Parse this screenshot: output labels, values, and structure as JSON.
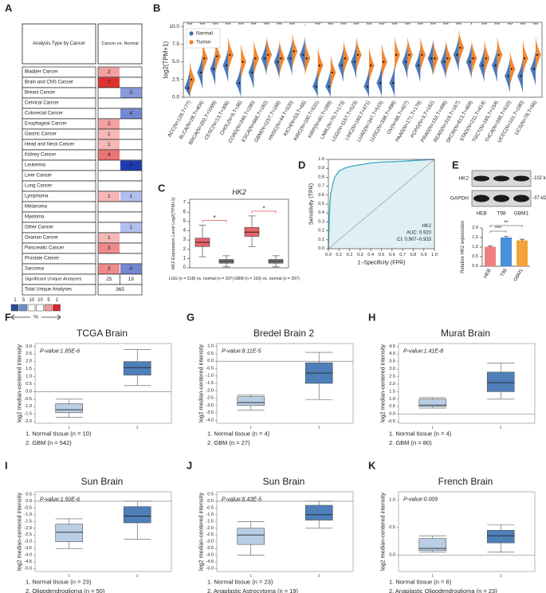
{
  "panel_a": {
    "label": "A",
    "header_left": "Analysis Type by Cancer",
    "header_right": "Cancer vs. Normal",
    "rows": [
      {
        "name": "Bladder Cancer",
        "up": 2,
        "down": null
      },
      {
        "name": "Brain and CNS Cancer",
        "up": 7,
        "down": null
      },
      {
        "name": "Breast Cancer",
        "up": null,
        "down": 3
      },
      {
        "name": "Cervical Cancer",
        "up": null,
        "down": null
      },
      {
        "name": "Colorectal Cancer",
        "up": null,
        "down": 4
      },
      {
        "name": "Esophageal Cancer",
        "up": 2,
        "down": null
      },
      {
        "name": "Gastric Cancer",
        "up": 1,
        "down": null
      },
      {
        "name": "Head and Neck Cancer",
        "up": 1,
        "down": null
      },
      {
        "name": "Kidney Cancer",
        "up": 4,
        "down": null
      },
      {
        "name": "Leukemia",
        "up": null,
        "down": 8
      },
      {
        "name": "Liver Cancer",
        "up": null,
        "down": null
      },
      {
        "name": "Lung Cancer",
        "up": null,
        "down": null
      },
      {
        "name": "Lymphoma",
        "up": 1,
        "down": 1
      },
      {
        "name": "Melanoma",
        "up": null,
        "down": null
      },
      {
        "name": "Myeloma",
        "up": null,
        "down": null
      },
      {
        "name": "Other Cancer",
        "up": null,
        "down": 1
      },
      {
        "name": "Ovarian Cancer",
        "up": 1,
        "down": null
      },
      {
        "name": "Pancreatic Cancer",
        "up": 3,
        "down": null
      },
      {
        "name": "Prostate Cancer",
        "up": null,
        "down": null
      },
      {
        "name": "Sarcoma",
        "up": 3,
        "down": 4
      }
    ],
    "significant_label": "Significant Unique Analyses",
    "significant": [
      25,
      19
    ],
    "total_label": "Total Unique Analyses",
    "total": 365,
    "legend_ticks": [
      1,
      5,
      10,
      10,
      5,
      1
    ],
    "legend_unit": "%"
  },
  "panel_b": {
    "label": "B",
    "type": "violin",
    "ylabel": "log2(TPM+1)",
    "ylim": [
      0,
      10.6
    ],
    "yticks": [
      {
        "value": 0,
        "label": "0.0"
      },
      2.5,
      {
        "value": 5,
        "label": "5.0"
      },
      7.5,
      {
        "value": 10,
        "label": "10.0"
      }
    ],
    "categories": [
      "ACC(N=128,T=77)",
      "BLCA(N=28,T=404)",
      "BRCA(N=292,T=1099)",
      "CESC(N=13,T=306)",
      "CHOL(N=9,T=36)",
      "COAD(N=349,T=290)",
      "ESCA(N=666,T=182)",
      "GBM(N=1157,T=166)",
      "HNSC(N=44,T=520)",
      "KICH(N=53,T=66)",
      "KIRC(N=100,T=531)",
      "KIRP(N=60,T=289)",
      "LAML(N=70,T=173)",
      "LGG(N=1157,T=523)",
      "LIHC(N=160,T=371)",
      "LUAD(N=347,T=515)",
      "LUSC(N=338,T=498)",
      "OV(N=88,T=427)",
      "PAAD(N=171,T=179)",
      "PCPG(N=3,T=182)",
      "PRAD(N=152,T=496)",
      "READ(N=318,T=167)",
      "SKCM(N=813,T=469)",
      "STAD(N=211,T=414)",
      "TGCT(N=165,T=154)",
      "THCA(N=338,T=510)",
      "UCEC(N=101,T=180)",
      "UCS(N=78,T=56)"
    ],
    "significance": [
      "***",
      "***",
      "***",
      "***",
      "***",
      "***",
      "***",
      "***",
      "***",
      "-",
      "***",
      "***",
      "***",
      "***",
      "***",
      "***",
      "***",
      "***",
      "***",
      "***",
      "***",
      "***",
      "*",
      "***",
      "***",
      "***",
      "***",
      "***"
    ],
    "series": [
      {
        "name": "Normal",
        "color": "#3a6db4",
        "values": [
          1.3,
          3.5,
          4.0,
          4.5,
          2.0,
          3.5,
          5.5,
          5.0,
          5.5,
          6.0,
          1.5,
          1.5,
          4.5,
          5.0,
          1.5,
          2.0,
          2.0,
          5.0,
          4.5,
          5.5,
          5.0,
          6.0,
          5.0,
          4.5,
          4.5,
          3.0,
          3.0,
          4.0
        ]
      },
      {
        "name": "Tumor",
        "color": "#f07d1f",
        "values": [
          2.5,
          5.5,
          5.8,
          6.0,
          5.0,
          5.5,
          6.0,
          5.5,
          6.5,
          5.5,
          4.5,
          3.5,
          5.5,
          6.0,
          4.5,
          5.0,
          6.0,
          6.0,
          6.0,
          5.5,
          5.5,
          7.0,
          5.5,
          5.5,
          6.0,
          4.0,
          5.5,
          6.0
        ]
      }
    ]
  },
  "panel_c": {
    "label": "C",
    "type": "box",
    "title": "HK2",
    "ylabel": "HK2 Expression Level Log2(TPM+1)",
    "ylim": [
      0,
      7.4
    ],
    "yticks": [
      0,
      1,
      2,
      3,
      4,
      5,
      6,
      7
    ],
    "tumor_color": "#e8656a",
    "normal_color": "#7f7f7f",
    "groups": [
      {
        "label": "LGG (n = 518) vs. normal (n = 207)",
        "significance": "*",
        "tumor": {
          "min": 1.2,
          "q1": 2.3,
          "median": 2.75,
          "q3": 3.2,
          "max": 4.6
        },
        "normal": {
          "min": 0.1,
          "q1": 0.5,
          "median": 0.7,
          "q3": 0.9,
          "max": 1.3
        }
      },
      {
        "label": "GBM (n = 163) vs. normal (n = 207)",
        "significance": "*",
        "tumor": {
          "min": 2.3,
          "q1": 3.4,
          "median": 3.85,
          "q3": 4.35,
          "max": 5.6
        },
        "normal": {
          "min": 0.1,
          "q1": 0.5,
          "median": 0.7,
          "q3": 0.9,
          "max": 1.3
        }
      }
    ]
  },
  "panel_d": {
    "label": "D",
    "type": "line",
    "xlabel": "1−Specificity (FPR)",
    "ylabel": "Sensitivity (TPR)",
    "xlim": [
      0,
      1
    ],
    "ylim": [
      0,
      1
    ],
    "xticks": [
      {
        "value": 0,
        "label": "0.0"
      },
      0.1,
      0.2,
      0.3,
      0.4,
      0.5,
      0.6,
      0.7,
      0.8,
      0.9,
      {
        "value": 1,
        "label": "1.0"
      }
    ],
    "yticks": [
      {
        "value": 0,
        "label": "0.0"
      },
      0.1,
      0.2,
      0.3,
      0.4,
      0.5,
      0.6,
      0.7,
      0.8,
      0.9,
      {
        "value": 1,
        "label": "1.0"
      }
    ],
    "x": [
      0,
      0.01,
      0.02,
      0.04,
      0.06,
      0.1,
      0.15,
      0.2,
      0.3,
      0.4,
      0.5,
      0.7,
      1.0
    ],
    "y": [
      0,
      0.4,
      0.6,
      0.72,
      0.8,
      0.87,
      0.9,
      0.92,
      0.94,
      0.96,
      0.97,
      0.98,
      1.0
    ],
    "color": "#3aa8c1",
    "annotations": [
      "HK2",
      "AUC: 0.920",
      "CI: 0.907−0.933"
    ]
  },
  "panel_e": {
    "label": "E",
    "blot": {
      "rows": [
        {
          "name": "HK2",
          "size": "-102 kDa"
        },
        {
          "name": "GAPDH",
          "size": "-37 kDa"
        }
      ],
      "lanes": [
        "HEB",
        "T98",
        "GBM1"
      ]
    },
    "chart": {
      "type": "bar",
      "ylabel": "Relative HK2 expression",
      "categories": [
        "HEB",
        "T98",
        "GBM1"
      ],
      "values": [
        1.02,
        1.5,
        1.35
      ],
      "errors": [
        0.05,
        0.06,
        0.06
      ],
      "colors": [
        "#f08080",
        "#4a8fd8",
        "#f3a33a"
      ],
      "ylim": [
        0,
        2
      ],
      "yticks": [
        {
          "value": 0,
          "label": "0.0"
        },
        0.5,
        {
          "value": 1,
          "label": "1.0"
        },
        1.5,
        {
          "value": 2,
          "label": "2.0"
        }
      ],
      "significance": [
        "***",
        "**"
      ]
    }
  },
  "panels_fk": [
    {
      "label": "F",
      "type": "box",
      "title": "TCGA Brain",
      "p_value": "P-value:1.85E-6",
      "ylabel": "log2 median-centered intensity",
      "ylim": [
        -2.1,
        3.2
      ],
      "yticks": [
        {
          "value": 3,
          "label": "3.0"
        },
        2.5,
        {
          "value": 2,
          "label": "2.0"
        },
        1.5,
        {
          "value": 1,
          "label": "1.0"
        },
        0.5,
        {
          "value": 0,
          "label": "0.0"
        },
        -0.5,
        {
          "value": -1,
          "label": "-1.0"
        },
        -1.5,
        {
          "value": -2,
          "label": "-2.0"
        }
      ],
      "categories": [
        "1",
        "2"
      ],
      "colors": [
        "#b9cde5",
        "#4f7fb8"
      ],
      "boxes": [
        {
          "min": -1.7,
          "q1": -1.4,
          "median": -1.2,
          "q3": -0.8,
          "max": -0.5
        },
        {
          "min": 0.4,
          "q1": 1.1,
          "median": 1.6,
          "q3": 2.0,
          "max": 2.8
        }
      ],
      "legend": [
        "1. Normal tissue (n = 10)",
        "2. GBM (n = 542)"
      ]
    },
    {
      "label": "G",
      "type": "box",
      "title": "Bredel Brain 2",
      "p_value": "P-value:8.11E-5",
      "ylabel": "log2 median-centered intensity",
      "ylim": [
        -4.2,
        1.2
      ],
      "yticks": [
        {
          "value": 1,
          "label": "1.0"
        },
        0.5,
        {
          "value": 0,
          "label": "0.0"
        },
        -0.5,
        {
          "value": -1,
          "label": "-1.0"
        },
        -1.5,
        {
          "value": -2,
          "label": "-2.0"
        },
        -2.5,
        {
          "value": -3,
          "label": "-3.0"
        },
        -3.5,
        {
          "value": -4,
          "label": "-4.0"
        }
      ],
      "categories": [
        "1",
        "2"
      ],
      "colors": [
        "#b9cde5",
        "#4f7fb8"
      ],
      "boxes": [
        {
          "min": -3.3,
          "q1": -3.0,
          "median": -2.8,
          "q3": -2.4,
          "max": -2.3
        },
        {
          "min": -2.6,
          "q1": -1.5,
          "median": -0.8,
          "q3": -0.1,
          "max": 0.6
        }
      ],
      "legend": [
        "1. Normal tissue (n = 4)",
        "2. GBM (n = 27)"
      ]
    },
    {
      "label": "H",
      "type": "box",
      "title": "Murat Brain",
      "p_value": "P-value:1.41E-8",
      "ylabel": "log2 median-centered intensity",
      "ylim": [
        -0.6,
        4.7
      ],
      "yticks": [
        4.5,
        {
          "value": 4,
          "label": "4.0"
        },
        3.5,
        {
          "value": 3,
          "label": "3.0"
        },
        2.5,
        {
          "value": 2,
          "label": "2.0"
        },
        1.5,
        {
          "value": 1,
          "label": "1.0"
        },
        0.5,
        {
          "value": 0,
          "label": "0.0"
        },
        -0.5
      ],
      "categories": [
        "1",
        "2"
      ],
      "colors": [
        "#b9cde5",
        "#4f7fb8"
      ],
      "boxes": [
        {
          "min": 0.4,
          "q1": 0.5,
          "median": 0.6,
          "q3": 1.0,
          "max": 1.1
        },
        {
          "min": 1.0,
          "q1": 1.5,
          "median": 2.1,
          "q3": 2.8,
          "max": 3.4
        }
      ],
      "legend": [
        "1. Normal tissue (n = 4)",
        "2. GBM (n = 80)"
      ]
    },
    {
      "label": "I",
      "type": "box",
      "title": "Sun Brain",
      "p_value": "P-value:1.50E-6",
      "ylabel": "log2 median-centered intensity",
      "ylim": [
        -5.2,
        0.7
      ],
      "yticks": [
        0.5,
        {
          "value": 0,
          "label": "0.0"
        },
        -0.5,
        {
          "value": -1,
          "label": "-1.0"
        },
        -1.5,
        {
          "value": -2,
          "label": "-2.0"
        },
        -2.5,
        {
          "value": -3,
          "label": "-3.0"
        },
        -3.5,
        {
          "value": -4,
          "label": "-4.0"
        },
        -4.5,
        {
          "value": -5,
          "label": "-5.0"
        }
      ],
      "categories": [
        "1",
        "2"
      ],
      "colors": [
        "#b9cde5",
        "#4f7fb8"
      ],
      "boxes": [
        {
          "min": -3.5,
          "q1": -3.0,
          "median": -2.3,
          "q3": -1.7,
          "max": -1.3
        },
        {
          "min": -2.8,
          "q1": -1.6,
          "median": -1.1,
          "q3": -0.4,
          "max": 0.0
        }
      ],
      "legend": [
        "1. Normal tissue (n = 23)",
        "2. Oligodendroglioma (n = 50)"
      ]
    },
    {
      "label": "J",
      "type": "box",
      "title": "Sun Brain",
      "p_value": "P-value:8.43E-5",
      "ylabel": "log2 median-centered intensity",
      "ylim": [
        -5.2,
        0.7
      ],
      "yticks": [
        0.5,
        {
          "value": 0,
          "label": "0.0"
        },
        -0.5,
        {
          "value": -1,
          "label": "-1.0"
        },
        -1.5,
        {
          "value": -2,
          "label": "-2.0"
        },
        -2.5,
        {
          "value": -3,
          "label": "-3.0"
        },
        -3.5,
        {
          "value": -4,
          "label": "-4.0"
        },
        -4.5,
        {
          "value": -5,
          "label": "-5.0"
        }
      ],
      "categories": [
        "1",
        "2"
      ],
      "colors": [
        "#b9cde5",
        "#4f7fb8"
      ],
      "boxes": [
        {
          "min": -4.0,
          "q1": -3.2,
          "median": -2.5,
          "q3": -2.0,
          "max": -1.5
        },
        {
          "min": -2.0,
          "q1": -1.4,
          "median": -1.0,
          "q3": -0.3,
          "max": 0.0
        }
      ],
      "legend": [
        "1. Normal tissue (n = 23)",
        "2. Anaplastic Astrocytoma (n = 19)"
      ]
    },
    {
      "label": "K",
      "type": "box",
      "title": "French Brain",
      "p_value": "P-value:0.009",
      "ylabel": "log2 median-centered intensity",
      "ylim": [
        -0.3,
        1.15
      ],
      "yticks": [
        {
          "value": 1,
          "label": "1.0"
        },
        0.5,
        {
          "value": 0,
          "label": "0.0"
        }
      ],
      "categories": [
        "1",
        "2"
      ],
      "colors": [
        "#b9cde5",
        "#4f7fb8"
      ],
      "boxes": [
        {
          "min": 0.05,
          "q1": 0.08,
          "median": 0.12,
          "q3": 0.3,
          "max": 0.35
        },
        {
          "min": 0.05,
          "q1": 0.22,
          "median": 0.35,
          "q3": 0.45,
          "max": 0.55
        }
      ],
      "legend": [
        "1. Normal tissue (n = 6)",
        "2. Anaplastic Oligodendroglioma (n = 23)"
      ]
    }
  ]
}
